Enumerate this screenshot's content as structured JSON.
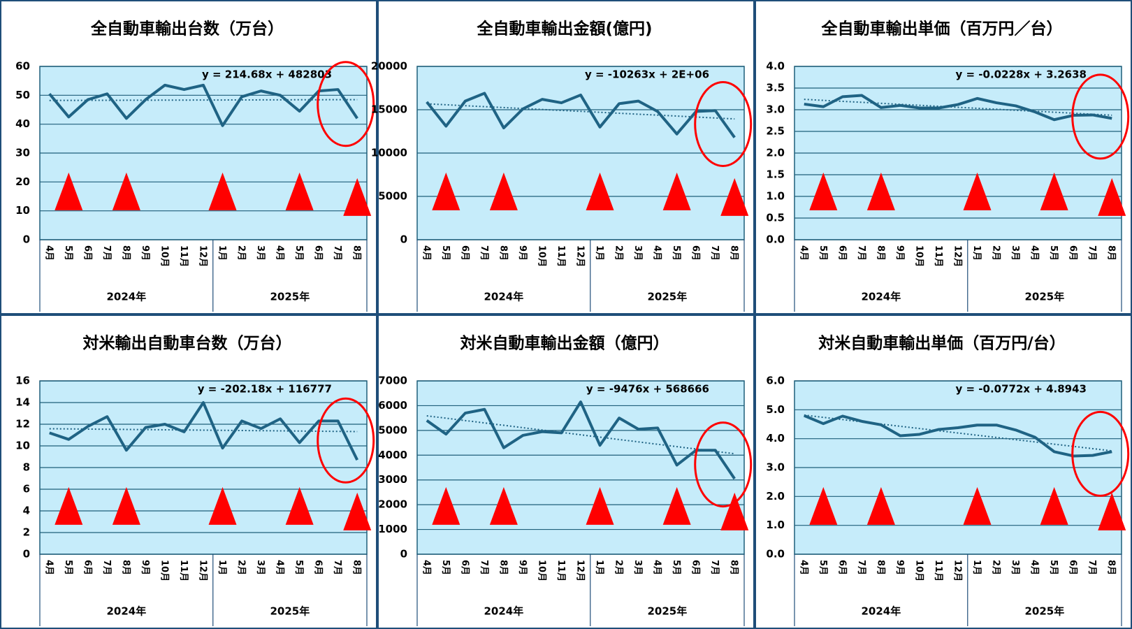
{
  "chart_data": [
    {
      "type": "line",
      "title": "全自動車輸出台数（万台）",
      "trendline_label": "y = 214.68x + 482803",
      "color": "#1f6384",
      "categories": [
        "4月",
        "5月",
        "6月",
        "7月",
        "8月",
        "9月",
        "10月",
        "11月",
        "12月",
        "1月",
        "2月",
        "3月",
        "4月",
        "5月",
        "6月",
        "7月",
        "8月"
      ],
      "x_groups": [
        "2024年",
        "2025年"
      ],
      "values": [
        50.5,
        42.5,
        48.5,
        50.5,
        42,
        48.5,
        53.5,
        52,
        53.5,
        39.5,
        49.5,
        51.5,
        50,
        44.5,
        51.5,
        52,
        42
      ],
      "ylim": [
        0,
        60
      ],
      "yticks": [
        0,
        10,
        20,
        30,
        40,
        50,
        60
      ],
      "grid": true
    },
    {
      "type": "line",
      "title": "全自動車輸出金額(億円)",
      "trendline_label": "y = -10263x + 2E+06",
      "color": "#1f6384",
      "categories": [
        "4月",
        "5月",
        "6月",
        "7月",
        "8月",
        "9月",
        "10月",
        "11月",
        "12月",
        "1月",
        "2月",
        "3月",
        "4月",
        "5月",
        "6月",
        "7月",
        "8月"
      ],
      "x_groups": [
        "2024年",
        "2025年"
      ],
      "values": [
        15900,
        13100,
        16000,
        16900,
        12900,
        15100,
        16200,
        15800,
        16700,
        13000,
        15700,
        16000,
        14800,
        12200,
        14800,
        14900,
        11800
      ],
      "ylim": [
        0,
        20000
      ],
      "yticks": [
        0,
        5000,
        10000,
        15000,
        20000
      ],
      "grid": true
    },
    {
      "type": "line",
      "title": "全自動車輸出単価（百万円／台）",
      "trendline_label": "y = -0.0228x + 3.2638",
      "color": "#1f6384",
      "categories": [
        "4月",
        "5月",
        "6月",
        "7月",
        "8月",
        "9月",
        "10月",
        "11月",
        "12月",
        "1月",
        "2月",
        "3月",
        "4月",
        "5月",
        "6月",
        "7月",
        "8月"
      ],
      "x_groups": [
        "2024年",
        "2025年"
      ],
      "values": [
        3.13,
        3.07,
        3.3,
        3.33,
        3.05,
        3.1,
        3.04,
        3.04,
        3.12,
        3.26,
        3.16,
        3.09,
        2.95,
        2.77,
        2.87,
        2.88,
        2.8
      ],
      "ylim": [
        0,
        4
      ],
      "yticks": [
        {
          "value": 0,
          "label": "0.0"
        },
        0.5,
        {
          "value": 1,
          "label": "1.0"
        },
        1.5,
        {
          "value": 2,
          "label": "2.0"
        },
        2.5,
        {
          "value": 3,
          "label": "3.0"
        },
        3.5,
        {
          "value": 4,
          "label": "4.0"
        }
      ],
      "grid": true
    },
    {
      "type": "line",
      "title": "対米輸出自動車台数（万台）",
      "trendline_label": "y = -202.18x + 116777",
      "color": "#1f6384",
      "categories": [
        "4月",
        "5月",
        "6月",
        "7月",
        "8月",
        "9月",
        "10月",
        "11月",
        "12月",
        "1月",
        "2月",
        "3月",
        "4月",
        "5月",
        "6月",
        "7月",
        "8月"
      ],
      "x_groups": [
        "2024年",
        "2025年"
      ],
      "values": [
        11.2,
        10.6,
        11.8,
        12.7,
        9.6,
        11.7,
        12,
        11.3,
        14,
        9.8,
        12.3,
        11.6,
        12.5,
        10.3,
        12.3,
        12.3,
        8.7
      ],
      "ylim": [
        0,
        16
      ],
      "yticks": [
        0,
        2,
        4,
        6,
        8,
        10,
        12,
        14,
        16
      ],
      "grid": true
    },
    {
      "type": "line",
      "title": "対米自動車輸出金額（億円）",
      "trendline_label": "y = -9476x + 568666",
      "color": "#1f6384",
      "categories": [
        "4月",
        "5月",
        "6月",
        "7月",
        "8月",
        "9月",
        "10月",
        "11月",
        "12月",
        "1月",
        "2月",
        "3月",
        "4月",
        "5月",
        "6月",
        "7月",
        "8月"
      ],
      "x_groups": [
        "2024年",
        "2025年"
      ],
      "values": [
        5400,
        4850,
        5700,
        5850,
        4300,
        4800,
        4950,
        4900,
        6150,
        4400,
        5500,
        5050,
        5100,
        3600,
        4200,
        4200,
        3050
      ],
      "ylim": [
        0,
        7000
      ],
      "yticks": [
        0,
        1000,
        2000,
        3000,
        4000,
        5000,
        6000,
        7000
      ],
      "grid": true
    },
    {
      "type": "line",
      "title": "対米自動車輸出単価（百万円/台）",
      "trendline_label": "y = -0.0772x + 4.8943",
      "color": "#1f6384",
      "categories": [
        "4月",
        "5月",
        "6月",
        "7月",
        "8月",
        "9月",
        "10月",
        "11月",
        "12月",
        "1月",
        "2月",
        "3月",
        "4月",
        "5月",
        "6月",
        "7月",
        "8月"
      ],
      "x_groups": [
        "2024年",
        "2025年"
      ],
      "values": [
        4.8,
        4.52,
        4.78,
        4.6,
        4.48,
        4.1,
        4.15,
        4.32,
        4.38,
        4.47,
        4.47,
        4.3,
        4.05,
        3.55,
        3.4,
        3.42,
        3.55
      ],
      "ylim": [
        0,
        6
      ],
      "yticks": [
        {
          "value": 0,
          "label": "0.0"
        },
        {
          "value": 1,
          "label": "1.0"
        },
        {
          "value": 2,
          "label": "2.0"
        },
        {
          "value": 3,
          "label": "3.0"
        },
        {
          "value": 4,
          "label": "4.0"
        },
        {
          "value": 5,
          "label": "5.0"
        },
        {
          "value": 6,
          "label": "6.0"
        }
      ],
      "grid": true
    }
  ]
}
